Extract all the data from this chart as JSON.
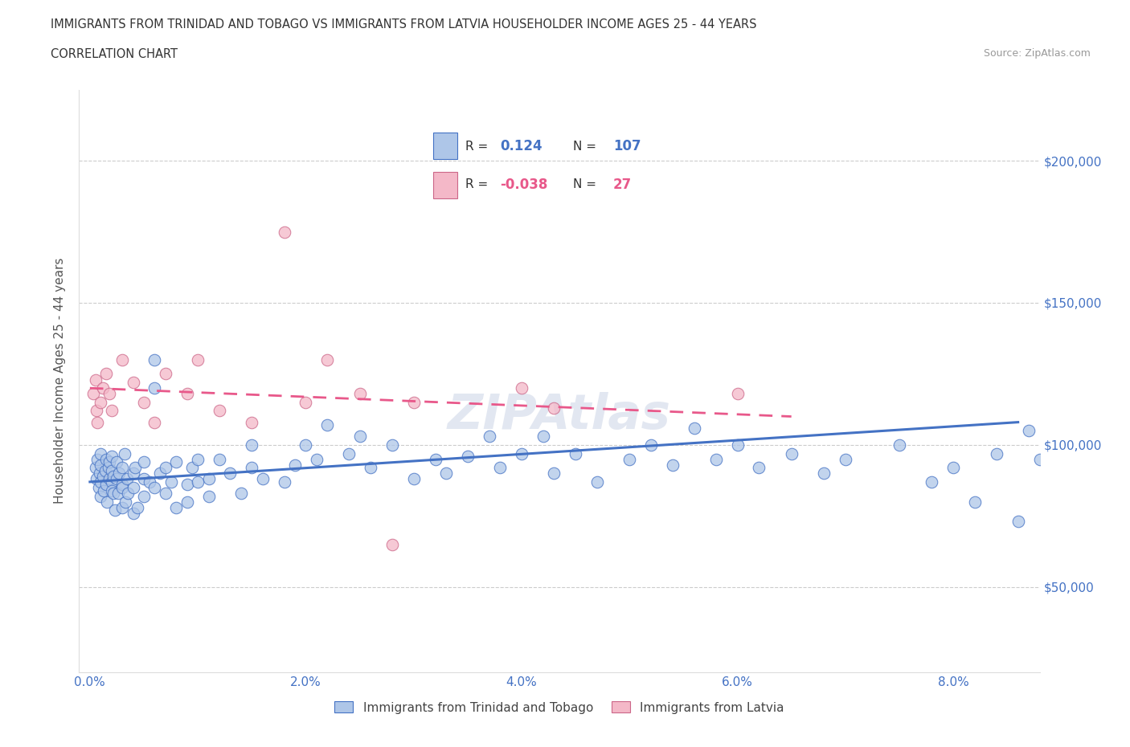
{
  "title_line1": "IMMIGRANTS FROM TRINIDAD AND TOBAGO VS IMMIGRANTS FROM LATVIA HOUSEHOLDER INCOME AGES 25 - 44 YEARS",
  "title_line2": "CORRELATION CHART",
  "source_text": "Source: ZipAtlas.com",
  "ylabel": "Householder Income Ages 25 - 44 years",
  "xlim": [
    -0.001,
    0.088
  ],
  "ylim": [
    20000,
    225000
  ],
  "color_blue": "#aec6e8",
  "color_pink": "#f4b8c8",
  "line_color_blue": "#4472c4",
  "line_color_pink": "#e8588a",
  "R_blue": 0.124,
  "N_blue": 107,
  "R_pink": -0.038,
  "N_pink": 27,
  "legend_label_blue": "Immigrants from Trinidad and Tobago",
  "legend_label_pink": "Immigrants from Latvia",
  "watermark": "ZIPAtlas",
  "trend_blue_x0": 0.0,
  "trend_blue_y0": 87000,
  "trend_blue_x1": 0.086,
  "trend_blue_y1": 108000,
  "trend_pink_x0": 0.0,
  "trend_pink_y0": 120000,
  "trend_pink_x1": 0.065,
  "trend_pink_y1": 110000,
  "blue_x": [
    0.0005,
    0.0006,
    0.0007,
    0.0008,
    0.0009,
    0.001,
    0.001,
    0.001,
    0.001,
    0.0012,
    0.0013,
    0.0014,
    0.0015,
    0.0015,
    0.0016,
    0.0017,
    0.0018,
    0.0018,
    0.002,
    0.002,
    0.002,
    0.002,
    0.0022,
    0.0022,
    0.0023,
    0.0025,
    0.0025,
    0.0026,
    0.0027,
    0.003,
    0.003,
    0.003,
    0.003,
    0.0032,
    0.0033,
    0.0034,
    0.0035,
    0.004,
    0.004,
    0.004,
    0.0042,
    0.0044,
    0.005,
    0.005,
    0.005,
    0.0055,
    0.006,
    0.006,
    0.006,
    0.0065,
    0.007,
    0.007,
    0.0075,
    0.008,
    0.008,
    0.009,
    0.009,
    0.0095,
    0.01,
    0.01,
    0.011,
    0.011,
    0.012,
    0.013,
    0.014,
    0.015,
    0.015,
    0.016,
    0.018,
    0.019,
    0.02,
    0.021,
    0.022,
    0.024,
    0.025,
    0.026,
    0.028,
    0.03,
    0.032,
    0.033,
    0.035,
    0.037,
    0.038,
    0.04,
    0.042,
    0.043,
    0.045,
    0.047,
    0.05,
    0.052,
    0.054,
    0.056,
    0.058,
    0.06,
    0.062,
    0.065,
    0.068,
    0.07,
    0.075,
    0.078,
    0.08,
    0.082,
    0.084,
    0.086,
    0.087,
    0.088,
    0.089
  ],
  "blue_y": [
    92000,
    88000,
    95000,
    85000,
    90000,
    87000,
    93000,
    82000,
    97000,
    89000,
    84000,
    91000,
    86000,
    95000,
    80000,
    92000,
    88000,
    94000,
    87000,
    91000,
    84000,
    96000,
    83000,
    89000,
    77000,
    88000,
    94000,
    83000,
    90000,
    86000,
    78000,
    92000,
    85000,
    97000,
    80000,
    88000,
    83000,
    90000,
    85000,
    76000,
    92000,
    78000,
    88000,
    82000,
    94000,
    87000,
    130000,
    120000,
    85000,
    90000,
    83000,
    92000,
    87000,
    78000,
    94000,
    86000,
    80000,
    92000,
    87000,
    95000,
    82000,
    88000,
    95000,
    90000,
    83000,
    92000,
    100000,
    88000,
    87000,
    93000,
    100000,
    95000,
    107000,
    97000,
    103000,
    92000,
    100000,
    88000,
    95000,
    90000,
    96000,
    103000,
    92000,
    97000,
    103000,
    90000,
    97000,
    87000,
    95000,
    100000,
    93000,
    106000,
    95000,
    100000,
    92000,
    97000,
    90000,
    95000,
    100000,
    87000,
    92000,
    80000,
    97000,
    73000,
    105000,
    95000,
    90000
  ],
  "pink_x": [
    0.0003,
    0.0005,
    0.0006,
    0.0007,
    0.001,
    0.0012,
    0.0015,
    0.0018,
    0.002,
    0.003,
    0.004,
    0.005,
    0.006,
    0.007,
    0.009,
    0.01,
    0.012,
    0.015,
    0.018,
    0.02,
    0.022,
    0.025,
    0.028,
    0.03,
    0.04,
    0.043,
    0.06
  ],
  "pink_y": [
    118000,
    123000,
    112000,
    108000,
    115000,
    120000,
    125000,
    118000,
    112000,
    130000,
    122000,
    115000,
    108000,
    125000,
    118000,
    130000,
    112000,
    108000,
    175000,
    115000,
    130000,
    118000,
    65000,
    115000,
    120000,
    113000,
    118000
  ]
}
